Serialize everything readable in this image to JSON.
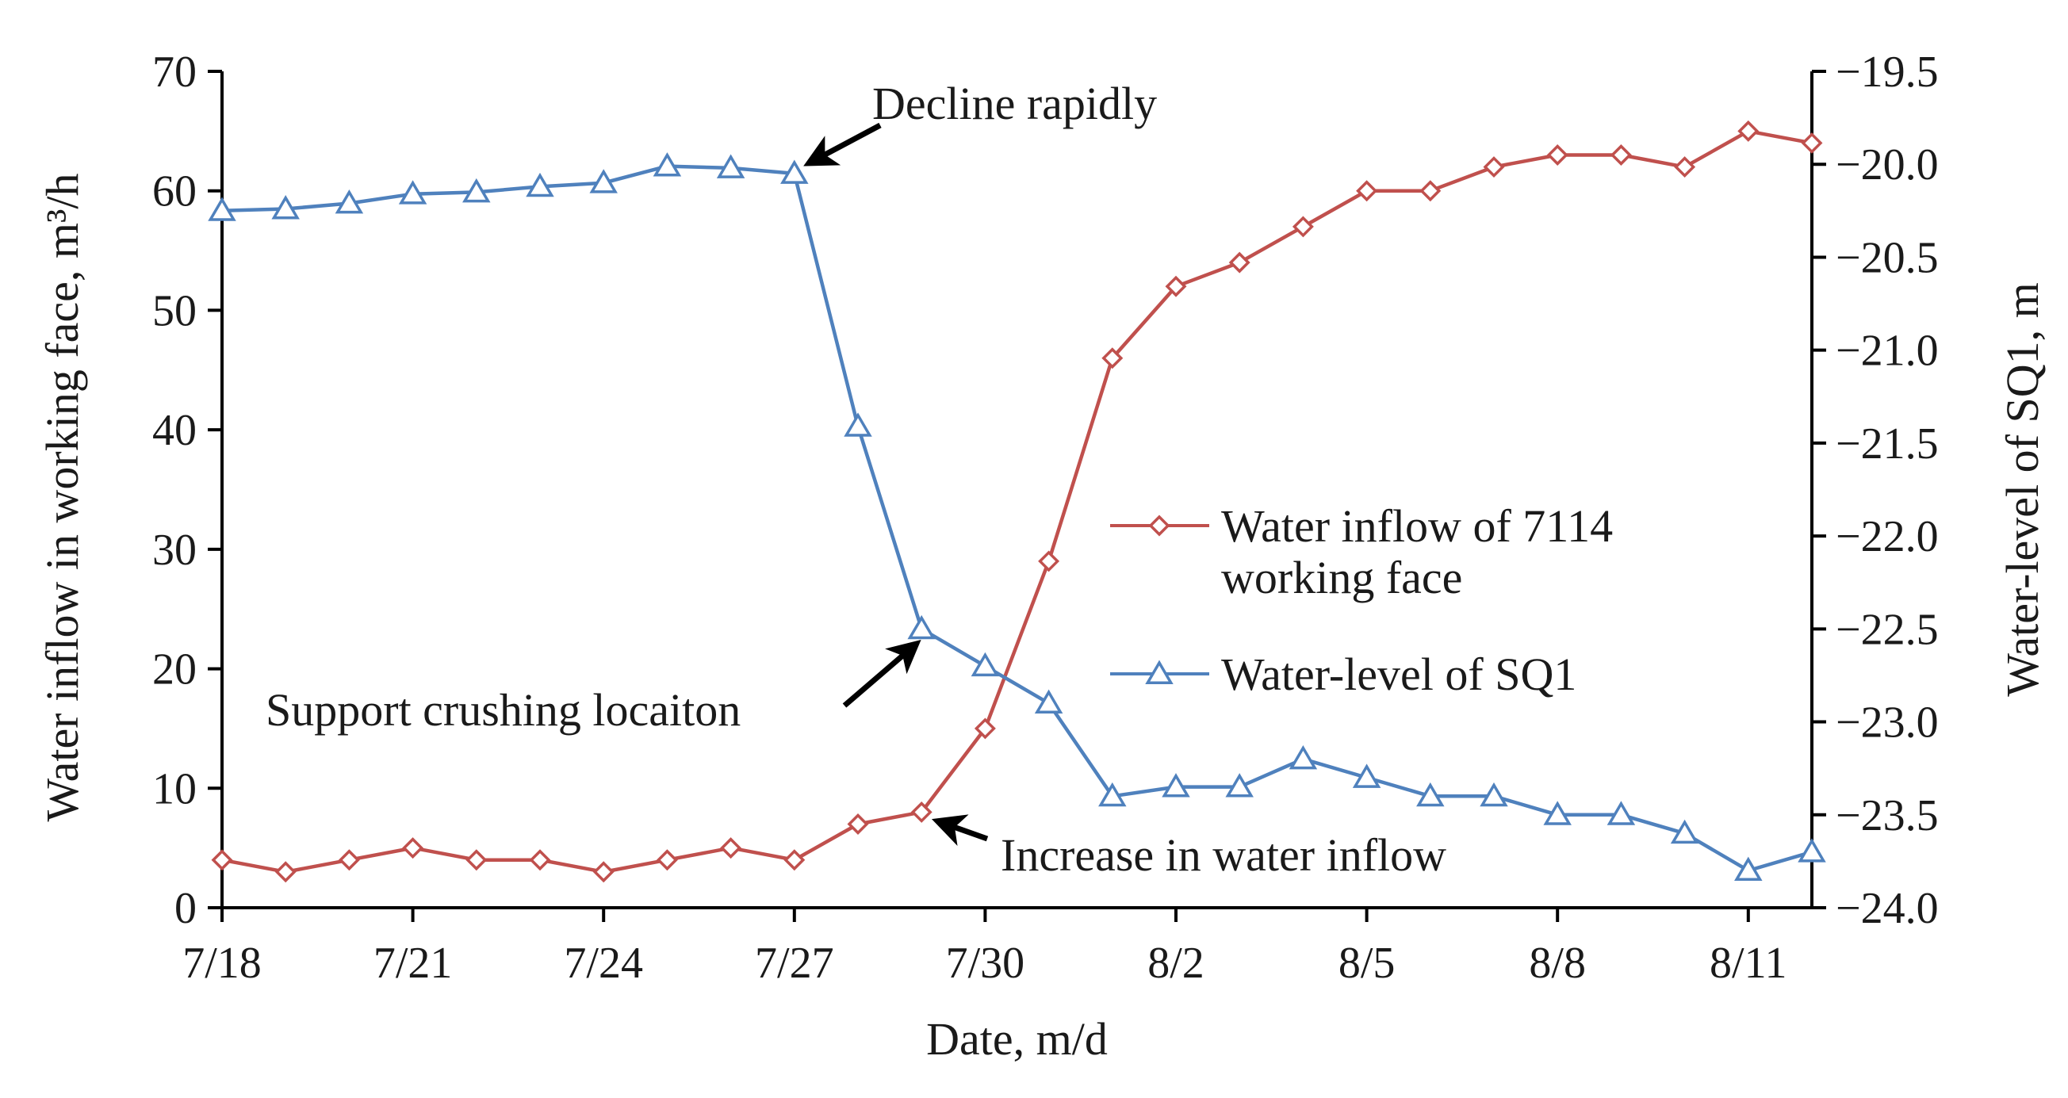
{
  "chart_data": {
    "type": "line",
    "title": "",
    "xlabel": "Date, m/d",
    "ylabel_left": "Water inflow in working face, m³/h",
    "ylabel_right": "Water-level of SQ1, m",
    "x": [
      "7/18",
      "7/19",
      "7/20",
      "7/21",
      "7/22",
      "7/23",
      "7/24",
      "7/25",
      "7/26",
      "7/27",
      "7/28",
      "7/29",
      "7/30",
      "7/31",
      "8/1",
      "8/2",
      "8/3",
      "8/4",
      "8/5",
      "8/6",
      "8/7",
      "8/8",
      "8/9",
      "8/10",
      "8/11",
      "8/12"
    ],
    "x_tick_labels": [
      "7/18",
      "7/21",
      "7/24",
      "7/27",
      "7/30",
      "8/2",
      "8/5",
      "8/8",
      "8/11"
    ],
    "ylim_left": [
      0,
      70
    ],
    "yticks_left": [
      "0",
      "10",
      "20",
      "30",
      "40",
      "50",
      "60",
      "70"
    ],
    "ylim_right": [
      -24.0,
      -19.5
    ],
    "yticks_right": [
      "−24.0",
      "−23.5",
      "−23.0",
      "−22.5",
      "−22.0",
      "−21.5",
      "−21.0",
      "−20.5",
      "−20.0",
      "−19.5"
    ],
    "grid": false,
    "legend_position": "center-right",
    "series": [
      {
        "name": "Water inflow of 7114 working face",
        "legend_lines": [
          "Water inflow of 7114",
          "working face"
        ],
        "axis": "left",
        "marker": "diamond",
        "color": "#c0504d",
        "values": [
          4,
          3,
          4,
          5,
          4,
          4,
          3,
          4,
          5,
          4,
          7,
          8,
          15,
          29,
          46,
          52,
          54,
          57,
          60,
          60,
          62,
          63,
          63,
          62,
          65,
          64
        ]
      },
      {
        "name": "Water-level of SQ1",
        "legend_lines": [
          "Water-level of SQ1"
        ],
        "axis": "right",
        "marker": "triangle",
        "color": "#4f81bd",
        "values": [
          -20.25,
          -20.24,
          -20.21,
          -20.16,
          -20.15,
          -20.12,
          -20.1,
          -20.01,
          -20.02,
          -20.05,
          -21.41,
          -22.5,
          -22.7,
          -22.9,
          -23.4,
          -23.35,
          -23.35,
          -23.2,
          -23.3,
          -23.4,
          -23.4,
          -23.5,
          -23.5,
          -23.6,
          -23.8,
          -23.7
        ]
      }
    ],
    "annotations": [
      {
        "text": "Decline rapidly",
        "point_index": 9,
        "series": 1
      },
      {
        "text": "Support crushing locaiton",
        "point_index": 11,
        "series": 1
      },
      {
        "text": "Increase in water inflow",
        "point_index": 11,
        "series": 0
      }
    ]
  }
}
